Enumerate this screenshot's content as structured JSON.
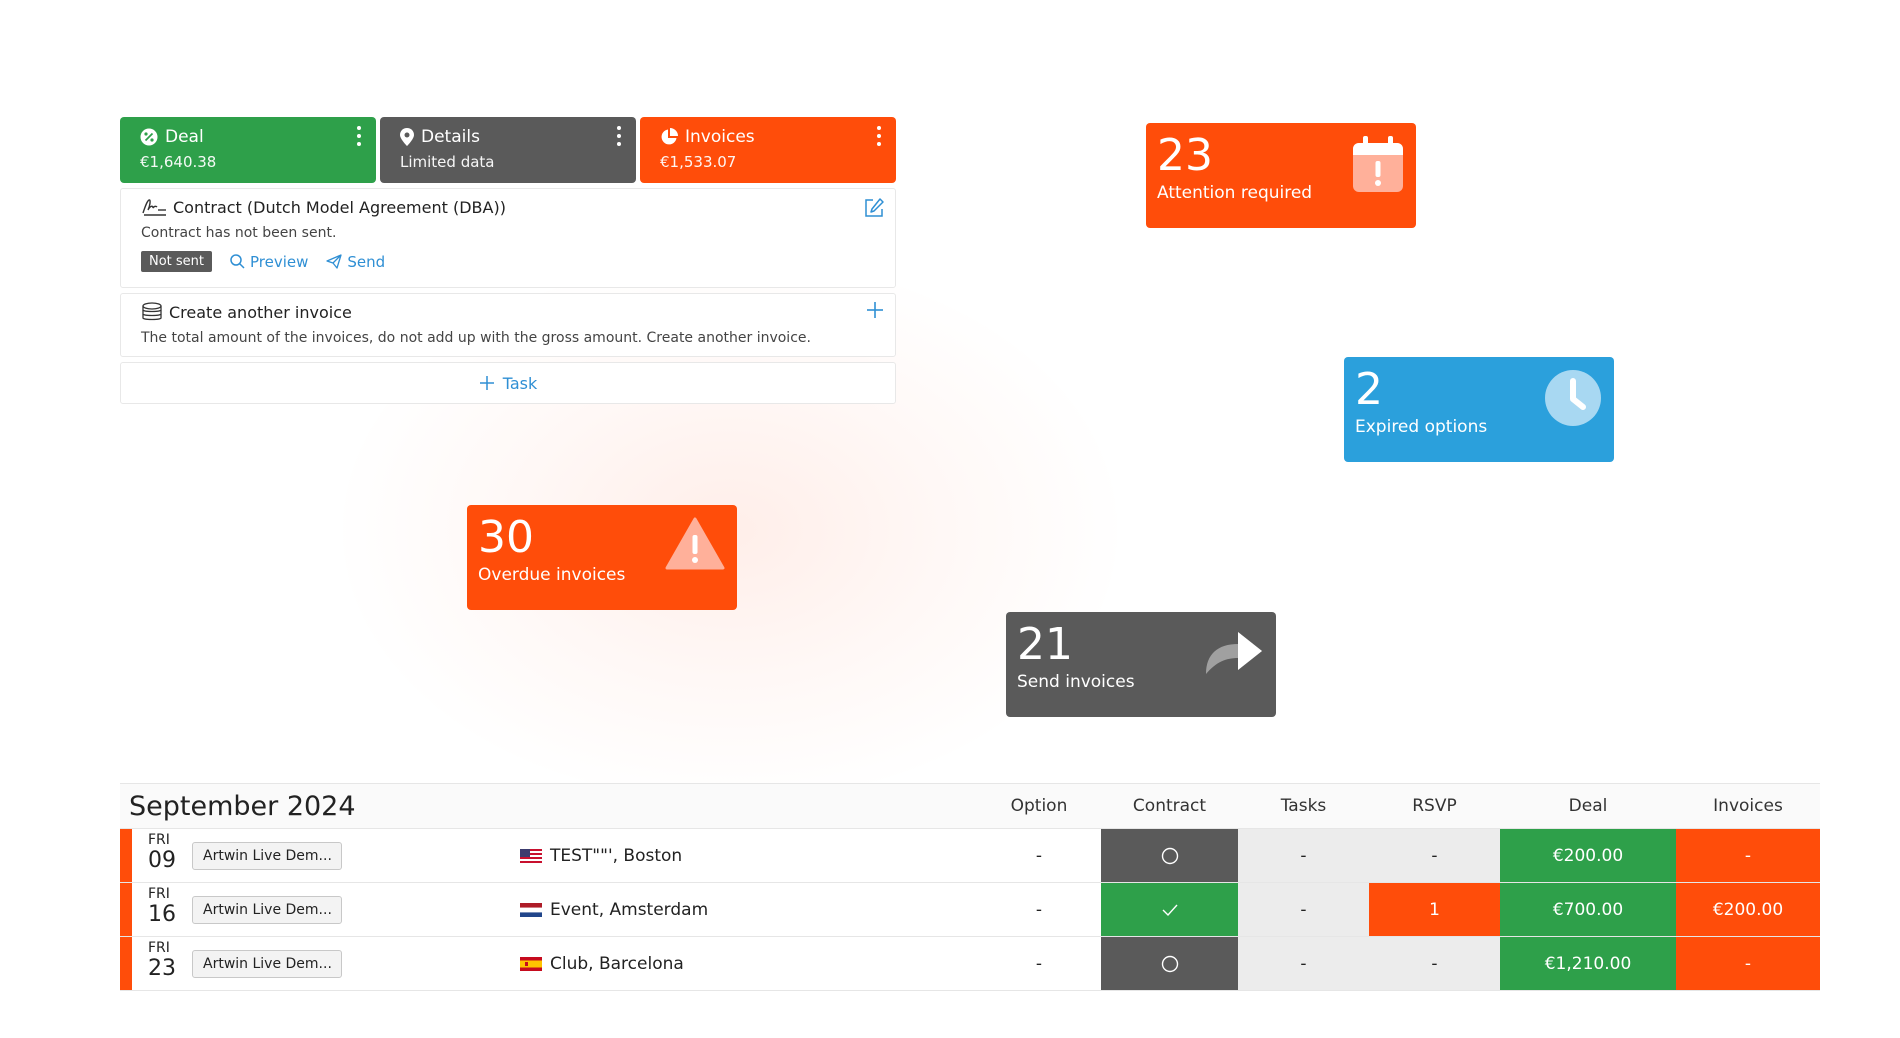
{
  "colors": {
    "green": "#2ea04a",
    "gray": "#5a5a5a",
    "orange": "#ff4d0a",
    "blue": "#2ba0dc",
    "link": "#2f8fd4"
  },
  "deal_panel": {
    "tabs": [
      {
        "icon": "badge-percent-icon",
        "title": "Deal",
        "subtitle": "€1,640.38"
      },
      {
        "icon": "map-pin-icon",
        "title": "Details",
        "subtitle": "Limited data"
      },
      {
        "icon": "pie-chart-icon",
        "title": "Invoices",
        "subtitle": "€1,533.07"
      }
    ],
    "contract": {
      "icon": "signature-icon",
      "title": "Contract (Dutch Model Agreement (DBA))",
      "description": "Contract has not been sent.",
      "status": "Not sent",
      "preview_label": "Preview",
      "send_label": "Send"
    },
    "invoice": {
      "icon": "coins-icon",
      "title": "Create another invoice",
      "description": "The total amount of the invoices, do not add up with the gross amount. Create another invoice."
    },
    "task_label": "Task"
  },
  "tiles": {
    "attention": {
      "count": "23",
      "label": "Attention required",
      "icon": "calendar-alert-icon"
    },
    "expired": {
      "count": "2",
      "label": "Expired options",
      "icon": "clock-icon"
    },
    "overdue": {
      "count": "30",
      "label": "Overdue invoices",
      "icon": "warning-triangle-icon"
    },
    "send": {
      "count": "21",
      "label": "Send invoices",
      "icon": "share-arrow-icon"
    }
  },
  "table": {
    "month": "September 2024",
    "columns": [
      "Option",
      "Contract",
      "Tasks",
      "RSVP",
      "Deal",
      "Invoices"
    ],
    "rows": [
      {
        "dow": "FRI",
        "day": "09",
        "artist": "Artwin Live Dem...",
        "flag": "us-flag-icon",
        "venue": "TEST\"\"', Boston",
        "option": "-",
        "contract_icon": "circle-icon",
        "tasks": "-",
        "rsvp": "-",
        "deal": "€200.00",
        "invoices": "-"
      },
      {
        "dow": "FRI",
        "day": "16",
        "artist": "Artwin Live Dem...",
        "flag": "nl-flag-icon",
        "venue": "Event, Amsterdam",
        "option": "-",
        "contract_icon": "check-icon",
        "tasks": "-",
        "rsvp": "1",
        "deal": "€700.00",
        "invoices": "€200.00"
      },
      {
        "dow": "FRI",
        "day": "23",
        "artist": "Artwin Live Dem...",
        "flag": "es-flag-icon",
        "venue": "Club, Barcelona",
        "option": "-",
        "contract_icon": "circle-icon",
        "tasks": "-",
        "rsvp": "-",
        "deal": "€1,210.00",
        "invoices": "-"
      }
    ]
  }
}
